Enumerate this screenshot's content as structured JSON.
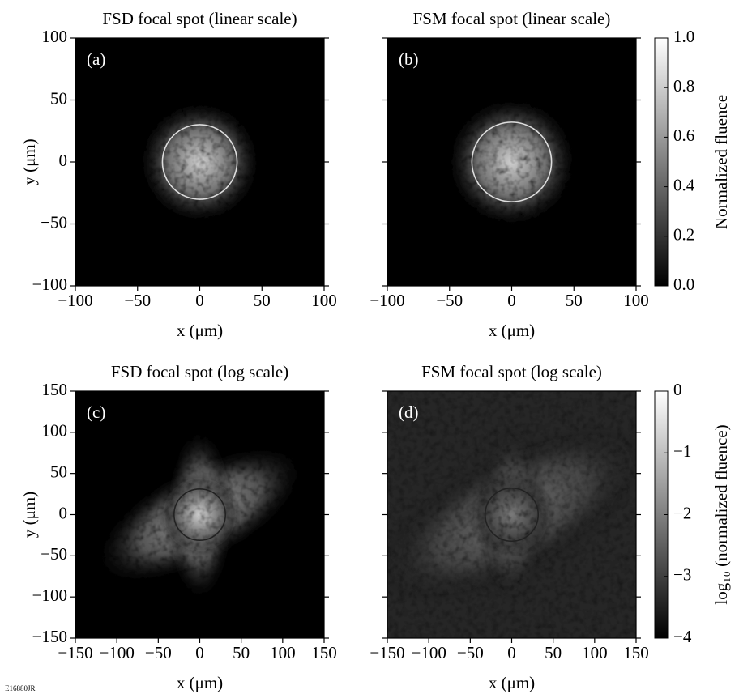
{
  "figure_id": "E16880JR",
  "chart_data": [
    {
      "type": "heatmap",
      "scale": "linear",
      "title": "FSD focal spot (linear scale)",
      "panel_label": "(a)",
      "xlabel": "x (μm)",
      "ylabel": "y (μm)",
      "xlim": [
        -100,
        100
      ],
      "ylim": [
        -100,
        100
      ],
      "xticks": [
        {
          "value": -100,
          "label": "−100"
        },
        {
          "value": -50,
          "label": "−50"
        },
        0,
        50,
        100
      ],
      "yticks": [
        {
          "value": -100,
          "label": "−100"
        },
        {
          "value": -50,
          "label": "−50"
        },
        0,
        50,
        100
      ],
      "ytick_labels": true,
      "circle": {
        "r": 30,
        "color": "#dddddd"
      }
    },
    {
      "type": "heatmap",
      "scale": "linear",
      "title": "FSM focal spot (linear scale)",
      "panel_label": "(b)",
      "xlabel": "x (μm)",
      "xlim": [
        -100,
        100
      ],
      "ylim": [
        -100,
        100
      ],
      "xticks": [
        {
          "value": -100,
          "label": "−100"
        },
        {
          "value": -50,
          "label": "−50"
        },
        0,
        50,
        100
      ],
      "yticks": [
        -100,
        -50,
        0,
        50,
        100
      ],
      "ytick_labels": false,
      "circle": {
        "r": 32,
        "color": "#dddddd"
      },
      "colorbar": {
        "label": "Normalized fluence",
        "lim": [
          0,
          1
        ],
        "ticks": [
          {
            "value": 0,
            "label": "0.0"
          },
          0.2,
          0.4,
          0.6,
          0.8,
          {
            "value": 1,
            "label": "1.0"
          }
        ]
      }
    },
    {
      "type": "heatmap",
      "scale": "log",
      "title": "FSD focal spot (log scale)",
      "panel_label": "(c)",
      "xlabel": "x (μm)",
      "ylabel": "y (μm)",
      "xlim": [
        -150,
        150
      ],
      "ylim": [
        -150,
        150
      ],
      "xticks": [
        {
          "value": -150,
          "label": "−150"
        },
        {
          "value": -100,
          "label": "−100"
        },
        {
          "value": -50,
          "label": "−50"
        },
        0,
        50,
        100,
        150
      ],
      "yticks": [
        {
          "value": -150,
          "label": "−150"
        },
        {
          "value": -100,
          "label": "−100"
        },
        {
          "value": -50,
          "label": "−50"
        },
        0,
        50,
        100,
        150
      ],
      "ytick_labels": true,
      "circle": {
        "r": 31,
        "color": "#222222"
      }
    },
    {
      "type": "heatmap",
      "scale": "log",
      "title": "FSM focal spot (log scale)",
      "panel_label": "(d)",
      "xlabel": "x (μm)",
      "xlim": [
        -150,
        150
      ],
      "ylim": [
        -150,
        150
      ],
      "xticks": [
        {
          "value": -150,
          "label": "−150"
        },
        {
          "value": -100,
          "label": "−100"
        },
        {
          "value": -50,
          "label": "−50"
        },
        0,
        50,
        100,
        150
      ],
      "yticks": [
        -150,
        -100,
        -50,
        0,
        50,
        100,
        150
      ],
      "ytick_labels": false,
      "circle": {
        "r": 32,
        "color": "#222222"
      },
      "background": "#262626",
      "colorbar": {
        "label": "log₁₀ (normalized fluence)",
        "lim": [
          -4,
          0
        ],
        "ticks": [
          {
            "value": -4,
            "label": "−4"
          },
          {
            "value": -3,
            "label": "−3"
          },
          {
            "value": -2,
            "label": "−2"
          },
          {
            "value": -1,
            "label": "−1"
          },
          0
        ]
      }
    }
  ]
}
